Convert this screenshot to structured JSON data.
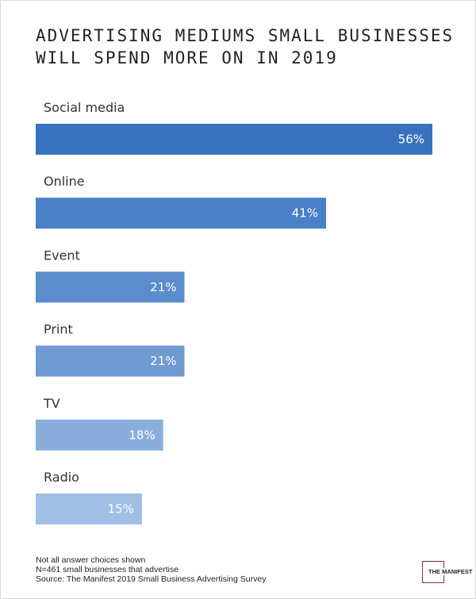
{
  "chart_data": {
    "type": "bar",
    "orientation": "horizontal",
    "title": "ADVERTISING MEDIUMS SMALL BUSINESSES WILL SPEND MORE ON IN 2019",
    "title_lines": [
      "ADVERTISING MEDIUMS SMALL BUSINESSES",
      "WILL SPEND MORE ON IN 2019"
    ],
    "categories": [
      "Social media",
      "Online",
      "Event",
      "Print",
      "TV",
      "Radio"
    ],
    "values": [
      56,
      41,
      21,
      21,
      18,
      15
    ],
    "value_labels": [
      "56%",
      "41%",
      "21%",
      "21%",
      "18%",
      "15%"
    ],
    "unit": "%",
    "xlim": [
      0,
      56
    ],
    "grid": false,
    "colors": [
      "#3872bf",
      "#4a80c7",
      "#5b8dcd",
      "#6f9ad2",
      "#8aaedb",
      "#a0bfe3"
    ]
  },
  "footnotes": [
    "Not all answer choices shown",
    "N=461 small businesses that advertise",
    "Source: The Manifest 2019 Small Business Advertising Survey"
  ],
  "logo": {
    "text": "THE MANIFEST",
    "color": "#8a2a4e"
  }
}
